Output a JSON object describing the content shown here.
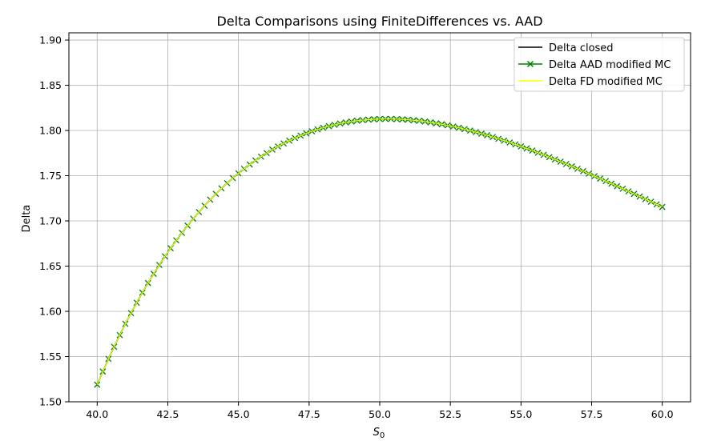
{
  "chart_data": {
    "type": "line",
    "title": "Delta Comparisons using FiniteDifferences vs. AAD",
    "xlabel": "S",
    "xlabel_sub": "0",
    "ylabel": "Delta",
    "xlim": [
      39.0,
      61.0
    ],
    "ylim": [
      1.5,
      1.908
    ],
    "xticks": [
      40.0,
      42.5,
      45.0,
      47.5,
      50.0,
      52.5,
      55.0,
      57.5,
      60.0
    ],
    "xtick_labels": [
      "40.0",
      "42.5",
      "45.0",
      "47.5",
      "50.0",
      "52.5",
      "55.0",
      "57.5",
      "60.0"
    ],
    "yticks": [
      1.5,
      1.55,
      1.6,
      1.65,
      1.7,
      1.75,
      1.8,
      1.85,
      1.9
    ],
    "ytick_labels": [
      "1.50",
      "1.55",
      "1.60",
      "1.65",
      "1.70",
      "1.75",
      "1.80",
      "1.85",
      "1.90"
    ],
    "grid": true,
    "legend_position": "top-right",
    "x": [
      40.0,
      40.2,
      40.4,
      40.6,
      40.8,
      41.0,
      41.2,
      41.4,
      41.6,
      41.8,
      42.0,
      42.2,
      42.4,
      42.6,
      42.8,
      43.0,
      43.2,
      43.4,
      43.6,
      43.8,
      44.0,
      44.2,
      44.4,
      44.6,
      44.8,
      45.0,
      45.2,
      45.4,
      45.6,
      45.8,
      46.0,
      46.2,
      46.4,
      46.6,
      46.8,
      47.0,
      47.2,
      47.4,
      47.6,
      47.8,
      48.0,
      48.2,
      48.4,
      48.6,
      48.8,
      49.0,
      49.2,
      49.4,
      49.6,
      49.8,
      50.0,
      50.2,
      50.4,
      50.6,
      50.8,
      51.0,
      51.2,
      51.4,
      51.6,
      51.8,
      52.0,
      52.2,
      52.4,
      52.6,
      52.8,
      53.0,
      53.2,
      53.4,
      53.6,
      53.8,
      54.0,
      54.2,
      54.4,
      54.6,
      54.8,
      55.0,
      55.2,
      55.4,
      55.6,
      55.8,
      56.0,
      56.2,
      56.4,
      56.6,
      56.8,
      57.0,
      57.2,
      57.4,
      57.6,
      57.8,
      58.0,
      58.2,
      58.4,
      58.6,
      58.8,
      59.0,
      59.2,
      59.4,
      59.6,
      59.8,
      60.0
    ],
    "series": [
      {
        "name": "Delta closed",
        "color": "#000000",
        "marker": "none",
        "values": [
          1.5189,
          1.5334,
          1.5474,
          1.5608,
          1.5737,
          1.5862,
          1.5981,
          1.6096,
          1.6207,
          1.6313,
          1.6415,
          1.6513,
          1.6608,
          1.6698,
          1.6785,
          1.6868,
          1.6948,
          1.7025,
          1.7098,
          1.7168,
          1.7235,
          1.7299,
          1.736,
          1.7418,
          1.7474,
          1.7526,
          1.7576,
          1.7624,
          1.7669,
          1.7711,
          1.7751,
          1.7789,
          1.7824,
          1.7857,
          1.7888,
          1.7917,
          1.7943,
          1.7968,
          1.7991,
          1.8012,
          1.8031,
          1.8048,
          1.8063,
          1.8077,
          1.8089,
          1.8099,
          1.8108,
          1.8115,
          1.812,
          1.8124,
          1.8127,
          1.8128,
          1.8128,
          1.8126,
          1.8123,
          1.8119,
          1.8113,
          1.8107,
          1.8099,
          1.809,
          1.808,
          1.8069,
          1.8057,
          1.8044,
          1.803,
          1.8015,
          1.7999,
          1.7982,
          1.7965,
          1.7947,
          1.7928,
          1.7908,
          1.7888,
          1.7867,
          1.7846,
          1.7824,
          1.7801,
          1.7778,
          1.7754,
          1.773,
          1.7705,
          1.768,
          1.7655,
          1.7629,
          1.7603,
          1.7576,
          1.755,
          1.7523,
          1.7495,
          1.7468,
          1.744,
          1.7412,
          1.7384,
          1.7356,
          1.7327,
          1.7299,
          1.727,
          1.7241,
          1.7212,
          1.7183,
          1.7154
        ]
      },
      {
        "name": "Delta AAD modified MC",
        "color": "#008000",
        "marker": "x",
        "values": [
          1.5189,
          1.5334,
          1.5474,
          1.5608,
          1.5737,
          1.5862,
          1.5981,
          1.6096,
          1.6207,
          1.6313,
          1.6415,
          1.6513,
          1.6608,
          1.6698,
          1.6785,
          1.6868,
          1.6948,
          1.7025,
          1.7098,
          1.7168,
          1.7235,
          1.7299,
          1.736,
          1.7418,
          1.7474,
          1.7526,
          1.7576,
          1.7624,
          1.7669,
          1.7711,
          1.7751,
          1.7789,
          1.7824,
          1.7857,
          1.7888,
          1.7917,
          1.7943,
          1.7968,
          1.7991,
          1.8012,
          1.8031,
          1.8048,
          1.8063,
          1.8077,
          1.8089,
          1.8099,
          1.8108,
          1.8115,
          1.812,
          1.8124,
          1.8127,
          1.8128,
          1.8128,
          1.8126,
          1.8123,
          1.8119,
          1.8113,
          1.8107,
          1.8099,
          1.809,
          1.808,
          1.8069,
          1.8057,
          1.8044,
          1.803,
          1.8015,
          1.7999,
          1.7982,
          1.7965,
          1.7947,
          1.7928,
          1.7908,
          1.7888,
          1.7867,
          1.7846,
          1.7824,
          1.7801,
          1.7778,
          1.7754,
          1.773,
          1.7705,
          1.768,
          1.7655,
          1.7629,
          1.7603,
          1.7576,
          1.755,
          1.7523,
          1.7495,
          1.7468,
          1.744,
          1.7412,
          1.7384,
          1.7356,
          1.7327,
          1.7299,
          1.727,
          1.7241,
          1.7212,
          1.7183,
          1.7154
        ]
      },
      {
        "name": "Delta FD modified MC",
        "color": "#ffff00",
        "marker": "none",
        "values": [
          1.5189,
          1.5334,
          1.5474,
          1.5608,
          1.5737,
          1.5862,
          1.5981,
          1.6096,
          1.6207,
          1.6313,
          1.6415,
          1.6513,
          1.6608,
          1.6698,
          1.6785,
          1.6868,
          1.6948,
          1.7025,
          1.7098,
          1.7168,
          1.7235,
          1.7299,
          1.736,
          1.7418,
          1.7474,
          1.7526,
          1.7576,
          1.7624,
          1.7669,
          1.7711,
          1.7751,
          1.7789,
          1.7824,
          1.7857,
          1.7888,
          1.7917,
          1.7943,
          1.7968,
          1.7991,
          1.8012,
          1.8031,
          1.8048,
          1.8063,
          1.8077,
          1.8089,
          1.8099,
          1.8108,
          1.8115,
          1.812,
          1.8124,
          1.8127,
          1.8128,
          1.8128,
          1.8126,
          1.8123,
          1.8119,
          1.8113,
          1.8107,
          1.8099,
          1.809,
          1.808,
          1.8069,
          1.8057,
          1.8044,
          1.803,
          1.8015,
          1.7999,
          1.7982,
          1.7965,
          1.7947,
          1.7928,
          1.7908,
          1.7888,
          1.7867,
          1.7846,
          1.7824,
          1.7801,
          1.7778,
          1.7754,
          1.773,
          1.7705,
          1.768,
          1.7655,
          1.7629,
          1.7603,
          1.7576,
          1.755,
          1.7523,
          1.7495,
          1.7468,
          1.744,
          1.7412,
          1.7384,
          1.7356,
          1.7327,
          1.7299,
          1.727,
          1.7241,
          1.7212,
          1.7183,
          1.7154
        ]
      }
    ]
  }
}
